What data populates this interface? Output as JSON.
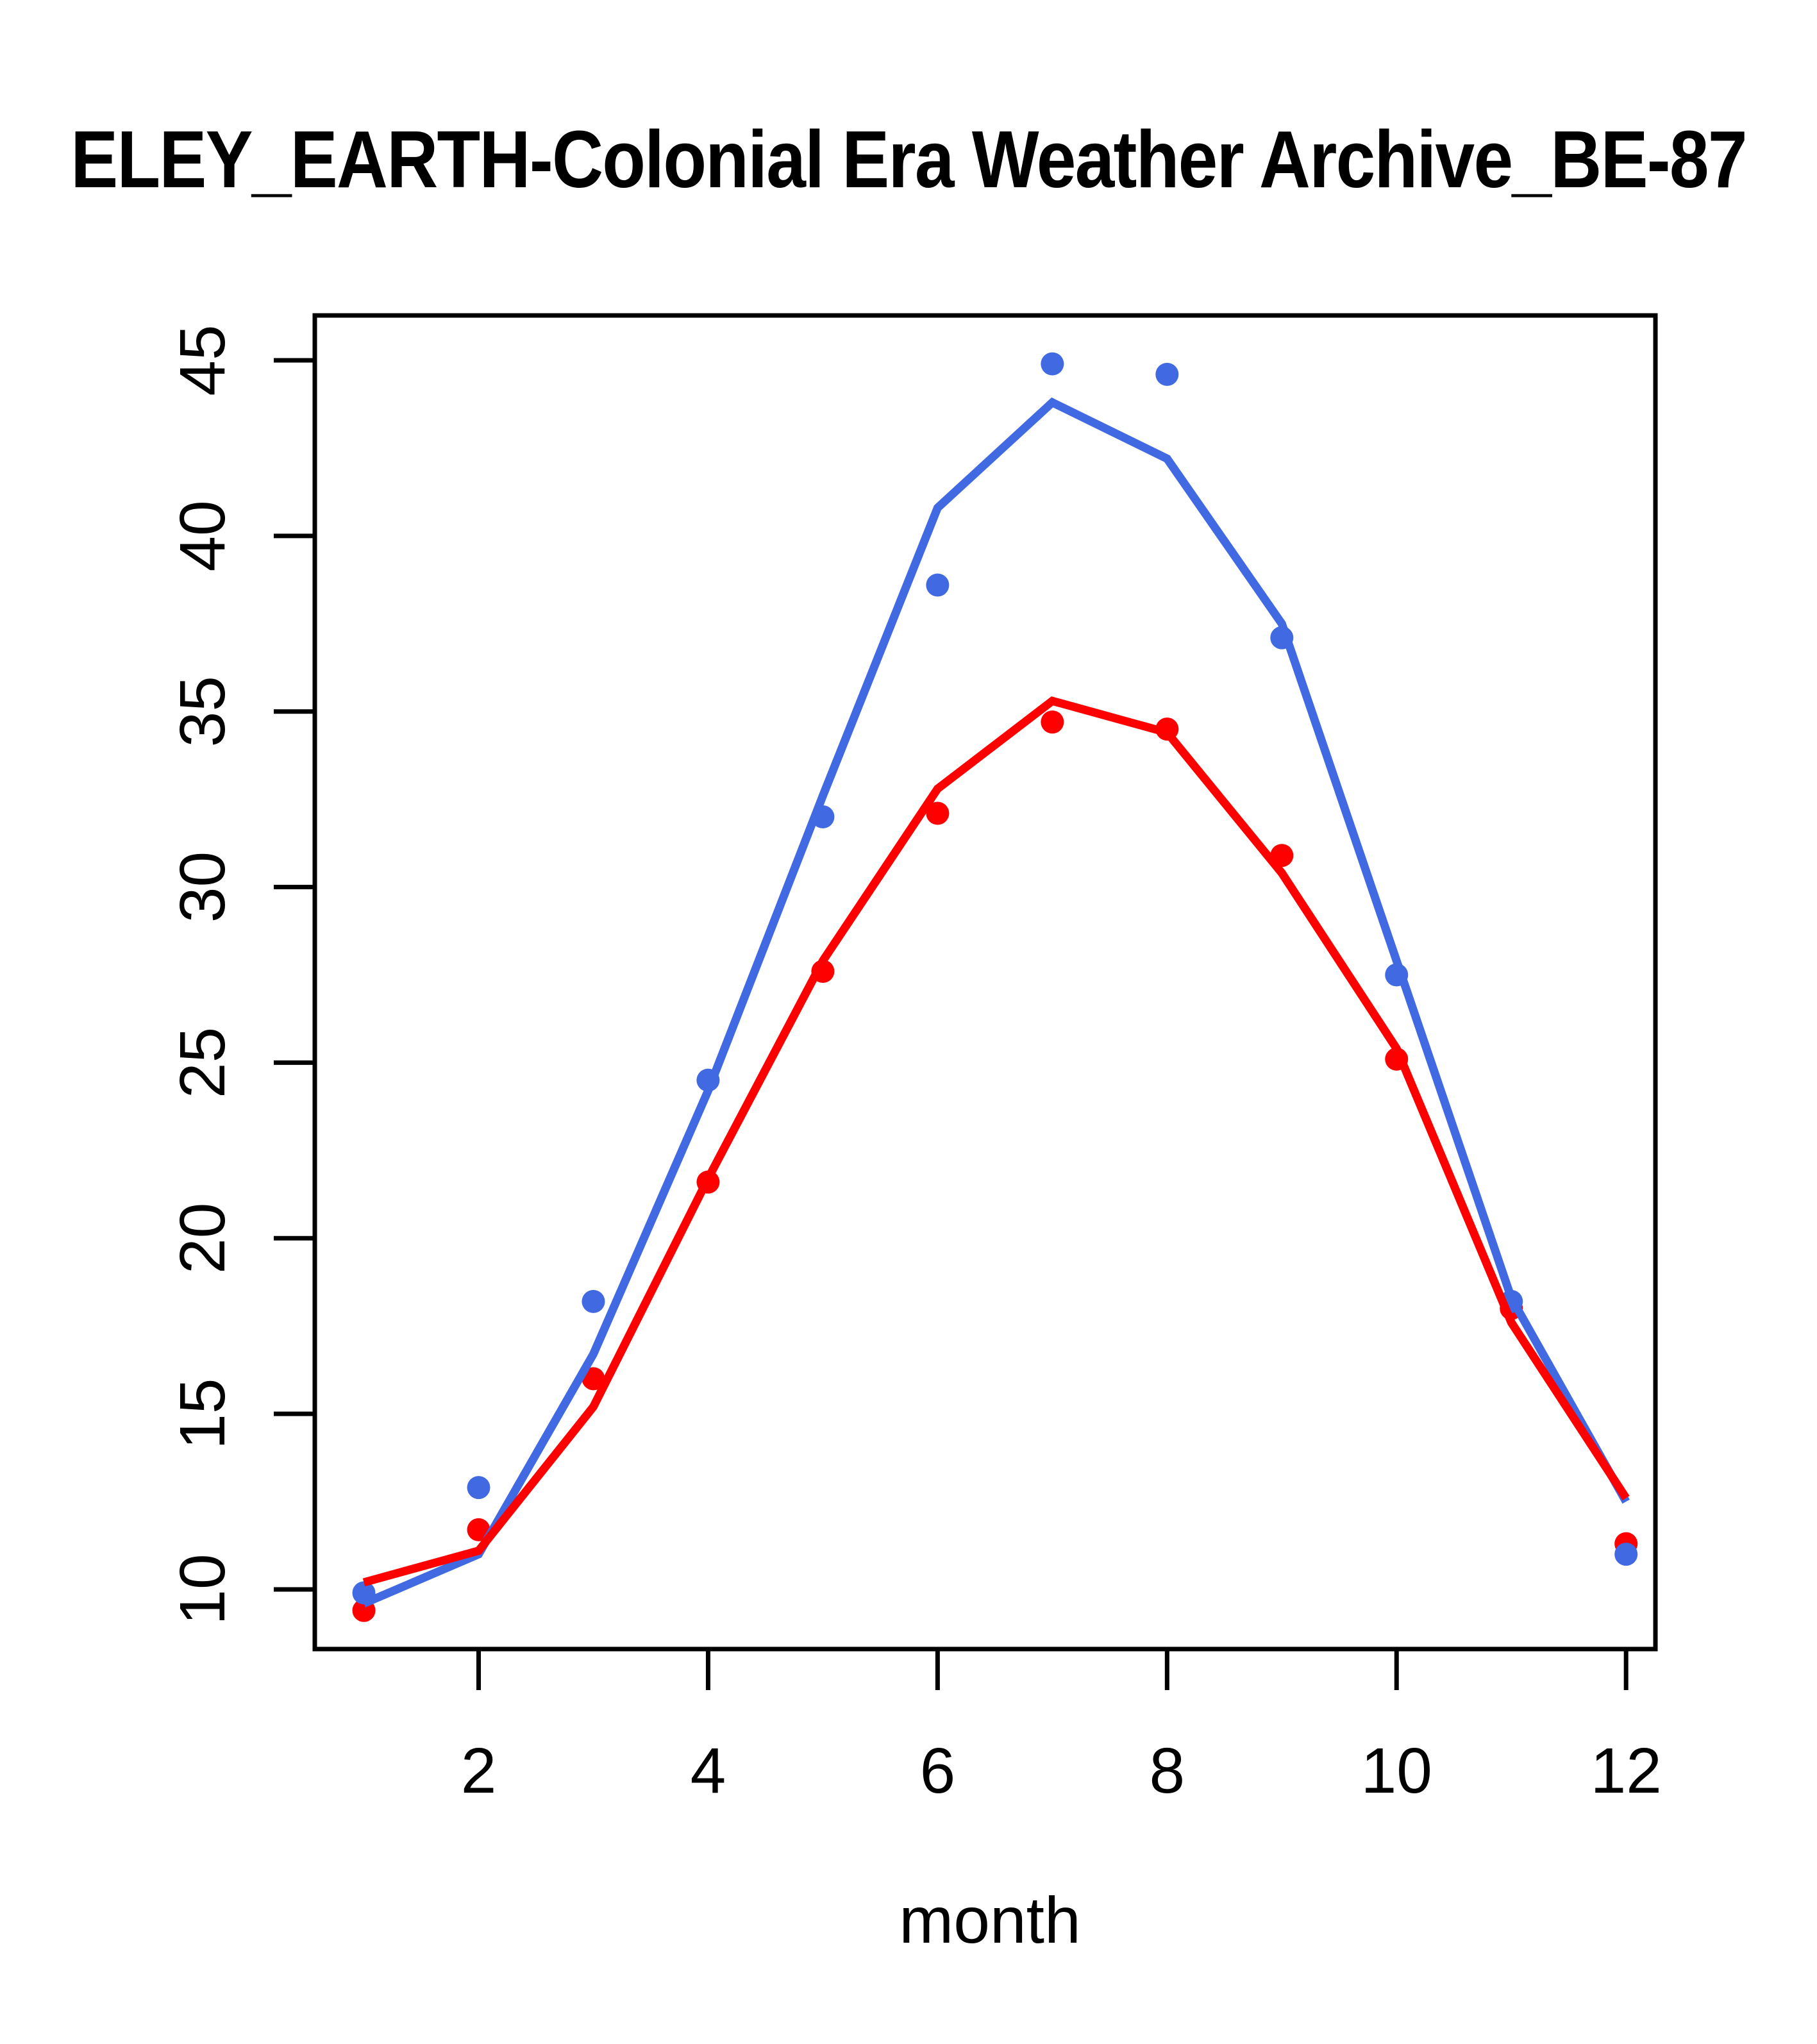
{
  "page": {
    "background": "#ffffff",
    "foreground": "#000000"
  },
  "chart_data": {
    "type": "line",
    "title": "ELEY_EARTH-Colonial Era Weather Archive_BE-87",
    "title_clipped_at_edges": true,
    "xlabel": "month",
    "ylabel": "",
    "x": [
      1,
      2,
      3,
      4,
      5,
      6,
      7,
      8,
      9,
      10,
      11,
      12
    ],
    "x_ticks": [
      2,
      4,
      6,
      8,
      10,
      12
    ],
    "y_ticks": [
      45,
      40,
      35,
      30,
      25,
      20,
      15,
      10
    ],
    "xlim": [
      0.56,
      12.26
    ],
    "ylim": [
      8.3,
      46.3
    ],
    "grid": false,
    "legend": "none",
    "colors": {
      "blue": "#4169E1",
      "red": "#FF0000"
    },
    "series": [
      {
        "name": "red-points",
        "type": "scatter",
        "color_key": "red",
        "z": 1,
        "values": [
          9.4,
          11.7,
          16.0,
          21.6,
          27.6,
          32.1,
          34.7,
          34.5,
          30.9,
          25.1,
          18.0,
          11.3
        ]
      },
      {
        "name": "blue-points",
        "type": "scatter",
        "color_key": "blue",
        "z": 2,
        "values": [
          9.9,
          12.9,
          18.2,
          24.5,
          32.0,
          38.6,
          44.9,
          44.6,
          37.1,
          27.5,
          18.2,
          11.0
        ]
      },
      {
        "name": "blue-line",
        "type": "line",
        "color_key": "blue",
        "z": 3,
        "values": [
          9.6,
          11.0,
          16.7,
          24.2,
          32.6,
          40.8,
          43.8,
          42.2,
          37.5,
          27.9,
          18.3,
          12.5
        ]
      },
      {
        "name": "red-line",
        "type": "line",
        "color_key": "red",
        "z": 4,
        "values": [
          10.2,
          11.1,
          15.2,
          21.7,
          27.9,
          32.8,
          35.3,
          34.4,
          30.4,
          25.4,
          17.6,
          12.6
        ]
      }
    ]
  }
}
